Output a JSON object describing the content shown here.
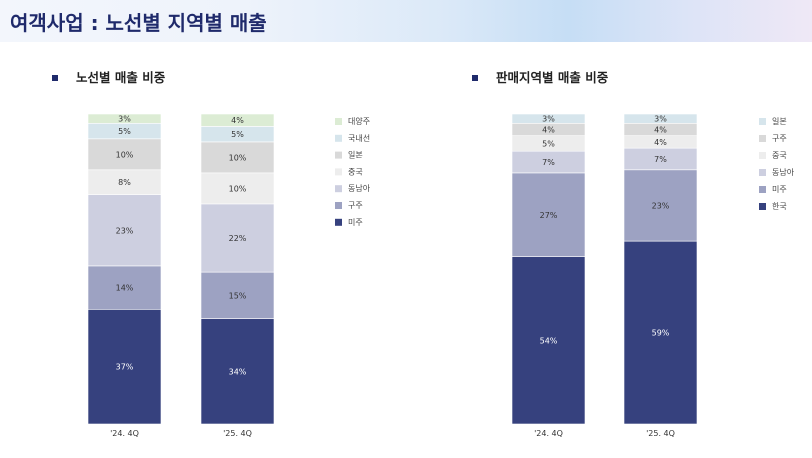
{
  "page_title": "여객사업 : 노선별 지역별 매출",
  "colors": {
    "title": "#1f2a6b",
    "bullet": "#1f2a6b"
  },
  "sections": [
    {
      "title": "노선별 매출 비중"
    },
    {
      "title": "판매지역별 매출 비중"
    }
  ],
  "chart_data": [
    {
      "type": "bar",
      "stacked": true,
      "title": "노선별 매출 비중",
      "categories": [
        "'24. 4Q",
        "'25. 4Q"
      ],
      "unit": "%",
      "legend_position": "right",
      "series": [
        {
          "name": "미주",
          "color": "#36417e",
          "values": [
            37,
            34
          ],
          "label_color": "#ffffff"
        },
        {
          "name": "구주",
          "color": "#9da2c2",
          "values": [
            14,
            15
          ],
          "label_color": "#333333"
        },
        {
          "name": "동남아",
          "color": "#cdcfe0",
          "values": [
            23,
            22
          ],
          "label_color": "#333333"
        },
        {
          "name": "중국",
          "color": "#ededed",
          "values": [
            8,
            10
          ],
          "label_color": "#333333"
        },
        {
          "name": "일본",
          "color": "#d9d9d9",
          "values": [
            10,
            10
          ],
          "label_color": "#333333"
        },
        {
          "name": "국내선",
          "color": "#d6e5ec",
          "values": [
            5,
            5
          ],
          "label_color": "#333333"
        },
        {
          "name": "대양주",
          "color": "#dcecd4",
          "values": [
            3,
            4
          ],
          "label_color": "#333333"
        }
      ]
    },
    {
      "type": "bar",
      "stacked": true,
      "title": "판매지역별 매출 비중",
      "categories": [
        "'24. 4Q",
        "'25. 4Q"
      ],
      "unit": "%",
      "legend_position": "right",
      "series": [
        {
          "name": "한국",
          "color": "#36417e",
          "values": [
            54,
            59
          ],
          "label_color": "#ffffff"
        },
        {
          "name": "미주",
          "color": "#9da2c2",
          "values": [
            27,
            23
          ],
          "label_color": "#333333"
        },
        {
          "name": "동남아",
          "color": "#cdcfe0",
          "values": [
            7,
            7
          ],
          "label_color": "#333333"
        },
        {
          "name": "중국",
          "color": "#ededed",
          "values": [
            5,
            4
          ],
          "label_color": "#333333"
        },
        {
          "name": "구주",
          "color": "#d9d9d9",
          "values": [
            4,
            4
          ],
          "label_color": "#333333"
        },
        {
          "name": "일본",
          "color": "#d6e5ec",
          "values": [
            3,
            3
          ],
          "label_color": "#333333"
        }
      ]
    }
  ]
}
